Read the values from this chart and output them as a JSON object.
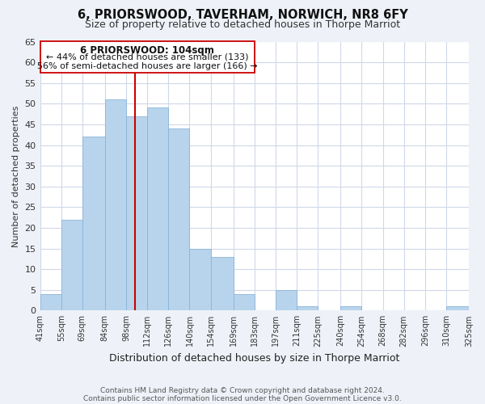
{
  "title": "6, PRIORSWOOD, TAVERHAM, NORWICH, NR8 6FY",
  "subtitle": "Size of property relative to detached houses in Thorpe Marriot",
  "xlabel": "Distribution of detached houses by size in Thorpe Marriot",
  "ylabel": "Number of detached properties",
  "bar_color": "#b8d4ec",
  "bar_edge_color": "#8ab4d8",
  "bins": [
    41,
    55,
    69,
    84,
    98,
    112,
    126,
    140,
    154,
    169,
    183,
    197,
    211,
    225,
    240,
    254,
    268,
    282,
    296,
    310,
    325
  ],
  "counts": [
    4,
    22,
    42,
    51,
    47,
    49,
    44,
    15,
    13,
    4,
    0,
    5,
    1,
    0,
    1,
    0,
    0,
    0,
    0,
    1
  ],
  "tick_labels": [
    "41sqm",
    "55sqm",
    "69sqm",
    "84sqm",
    "98sqm",
    "112sqm",
    "126sqm",
    "140sqm",
    "154sqm",
    "169sqm",
    "183sqm",
    "197sqm",
    "211sqm",
    "225sqm",
    "240sqm",
    "254sqm",
    "268sqm",
    "282sqm",
    "296sqm",
    "310sqm",
    "325sqm"
  ],
  "ylim": [
    0,
    65
  ],
  "yticks": [
    0,
    5,
    10,
    15,
    20,
    25,
    30,
    35,
    40,
    45,
    50,
    55,
    60,
    65
  ],
  "vline_x": 104,
  "vline_color": "#cc0000",
  "annotation_title": "6 PRIORSWOOD: 104sqm",
  "annotation_line1": "← 44% of detached houses are smaller (133)",
  "annotation_line2": "56% of semi-detached houses are larger (166) →",
  "footnote1": "Contains HM Land Registry data © Crown copyright and database right 2024.",
  "footnote2": "Contains public sector information licensed under the Open Government Licence v3.0.",
  "background_color": "#eef2f8",
  "plot_bg_color": "#ffffff",
  "grid_color": "#d0d8e8"
}
